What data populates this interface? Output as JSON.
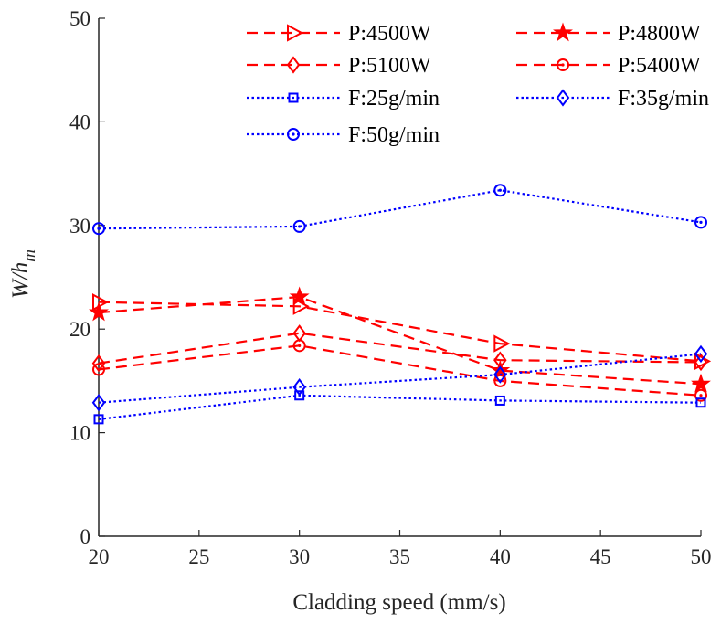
{
  "chart_data": {
    "type": "line",
    "xlabel": "Cladding speed (mm/s)",
    "ylabel_main": "W/h",
    "ylabel_sub": "m",
    "xlim": [
      20,
      50
    ],
    "ylim": [
      0,
      50
    ],
    "xticks": [
      20,
      25,
      30,
      35,
      40,
      45,
      50
    ],
    "yticks": [
      0,
      10,
      20,
      30,
      40,
      50
    ],
    "grid": false,
    "legend_position": "top-right",
    "x": [
      20,
      30,
      40,
      50
    ],
    "series": [
      {
        "name": "P:4500W",
        "values": [
          22.6,
          22.2,
          18.6,
          16.9
        ],
        "color": "#ff0000",
        "line": "dashed",
        "marker": "triangle-right"
      },
      {
        "name": "P:4800W",
        "values": [
          21.6,
          23.1,
          16.0,
          14.7
        ],
        "color": "#ff0000",
        "line": "dashed",
        "marker": "star"
      },
      {
        "name": "P:5100W",
        "values": [
          16.7,
          19.6,
          17.0,
          16.8
        ],
        "color": "#ff0000",
        "line": "dashed",
        "marker": "diamond"
      },
      {
        "name": "P:5400W",
        "values": [
          16.1,
          18.4,
          15.0,
          13.6
        ],
        "color": "#ff0000",
        "line": "dashed",
        "marker": "circle-dot"
      },
      {
        "name": "F:25g/min",
        "values": [
          11.3,
          13.6,
          13.1,
          12.9
        ],
        "color": "#0000ff",
        "line": "dotted",
        "marker": "square"
      },
      {
        "name": "F:35g/min",
        "values": [
          12.9,
          14.4,
          15.6,
          17.6
        ],
        "color": "#0000ff",
        "line": "dotted",
        "marker": "diamond"
      },
      {
        "name": "F:50g/min",
        "values": [
          29.7,
          29.9,
          33.4,
          30.3
        ],
        "color": "#0000ff",
        "line": "dotted",
        "marker": "circle-dot"
      }
    ]
  }
}
